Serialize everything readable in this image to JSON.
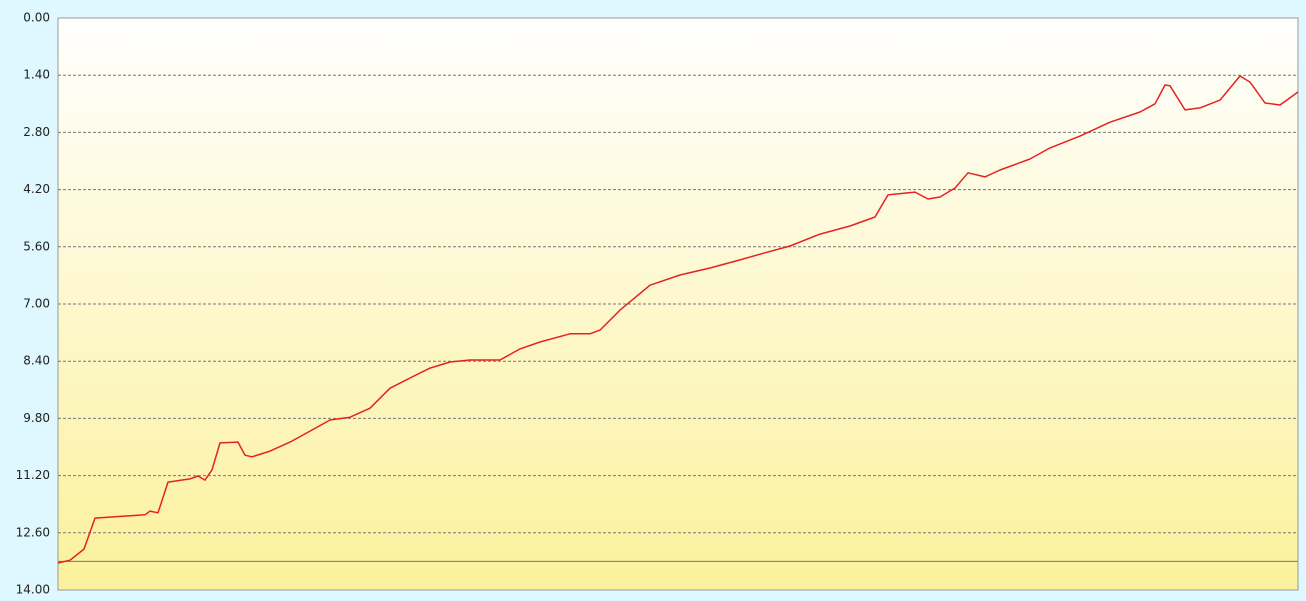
{
  "chart_data": {
    "type": "line",
    "y_inverted": true,
    "grid": true,
    "reference_line": 13.3,
    "xlim": [
      0,
      1240
    ],
    "ylim": [
      0,
      14
    ],
    "yticks": [
      {
        "value": 0,
        "label": "0.00"
      },
      {
        "value": 1.4,
        "label": "1.40"
      },
      {
        "value": 2.8,
        "label": "2.80"
      },
      {
        "value": 4.2,
        "label": "4.20"
      },
      {
        "value": 5.6,
        "label": "5.60"
      },
      {
        "value": 7,
        "label": "7.00"
      },
      {
        "value": 8.4,
        "label": "8.40"
      },
      {
        "value": 9.8,
        "label": "9.80"
      },
      {
        "value": 11.2,
        "label": "11.20"
      },
      {
        "value": 12.6,
        "label": "12.60"
      },
      {
        "value": 14,
        "label": "14.00"
      }
    ],
    "x": [
      0,
      12,
      26,
      37,
      87,
      92,
      100,
      110,
      132,
      140,
      147,
      154,
      162,
      180,
      187,
      194,
      212,
      232,
      252,
      272,
      292,
      312,
      332,
      352,
      372,
      392,
      412,
      442,
      462,
      482,
      512,
      532,
      542,
      562,
      592,
      622,
      652,
      682,
      702,
      732,
      762,
      792,
      817,
      830,
      857,
      870,
      882,
      897,
      910,
      927,
      942,
      972,
      992,
      1022,
      1052,
      1082,
      1097,
      1107,
      1112,
      1127,
      1142,
      1162,
      1182,
      1192,
      1207,
      1222,
      1240
    ],
    "series": [
      {
        "color": "#e52222",
        "values": [
          13.34,
          13.27,
          13.0,
          12.24,
          12.16,
          12.07,
          12.11,
          11.36,
          11.28,
          11.21,
          11.31,
          11.06,
          10.4,
          10.38,
          10.7,
          10.74,
          10.6,
          10.38,
          10.11,
          9.84,
          9.77,
          9.55,
          9.06,
          8.81,
          8.57,
          8.42,
          8.37,
          8.37,
          8.1,
          7.93,
          7.73,
          7.73,
          7.64,
          7.15,
          6.54,
          6.29,
          6.12,
          5.92,
          5.78,
          5.58,
          5.29,
          5.09,
          4.87,
          4.33,
          4.26,
          4.43,
          4.38,
          4.16,
          3.79,
          3.89,
          3.72,
          3.45,
          3.18,
          2.89,
          2.55,
          2.3,
          2.1,
          1.64,
          1.66,
          2.25,
          2.2,
          2.01,
          1.42,
          1.57,
          2.08,
          2.13,
          1.81
        ]
      }
    ]
  }
}
